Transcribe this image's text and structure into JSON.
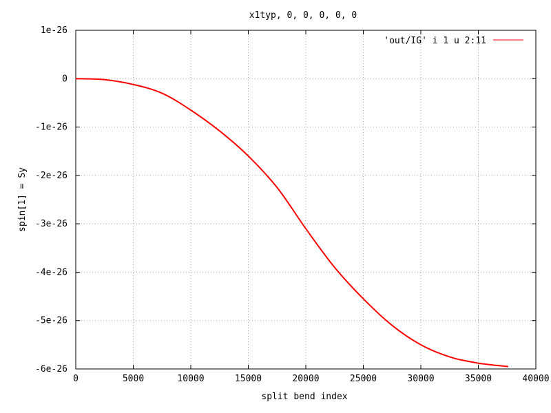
{
  "chart_data": {
    "type": "line",
    "title": "x1typ, 0, 0, 0, 0, 0",
    "xlabel": "split bend index",
    "ylabel": "spin[1] = Sy",
    "xlim": [
      0,
      40000
    ],
    "ylim": [
      -6e-26,
      1e-26
    ],
    "xticks": [
      0,
      5000,
      10000,
      15000,
      20000,
      25000,
      30000,
      35000,
      40000
    ],
    "xtick_labels": [
      "0",
      "5000",
      "10000",
      "15000",
      "20000",
      "25000",
      "30000",
      "35000",
      "40000"
    ],
    "yticks": [
      1e-26,
      0,
      -1e-26,
      -2e-26,
      -3e-26,
      -4e-26,
      -5e-26,
      -6e-26
    ],
    "ytick_labels": [
      "1e-26",
      "0",
      "-1e-26",
      "-2e-26",
      "-3e-26",
      "-4e-26",
      "-5e-26",
      "-6e-26"
    ],
    "grid": true,
    "legend_position": "top-right",
    "series": [
      {
        "name": "'out/IG' i 1 u 2:11",
        "color": "#ff0000",
        "x": [
          0,
          2500,
          5000,
          7500,
          10000,
          12500,
          15000,
          17500,
          20000,
          22500,
          25000,
          27500,
          30000,
          32500,
          35000,
          37600
        ],
        "y": [
          0,
          -2e-28,
          -1.2e-27,
          -3e-27,
          -6.5e-27,
          -1.08e-26,
          -1.6e-26,
          -2.25e-26,
          -3.1e-26,
          -3.9e-26,
          -4.55e-26,
          -5.1e-26,
          -5.5e-26,
          -5.75e-26,
          -5.88e-26,
          -5.95e-26
        ]
      }
    ]
  }
}
